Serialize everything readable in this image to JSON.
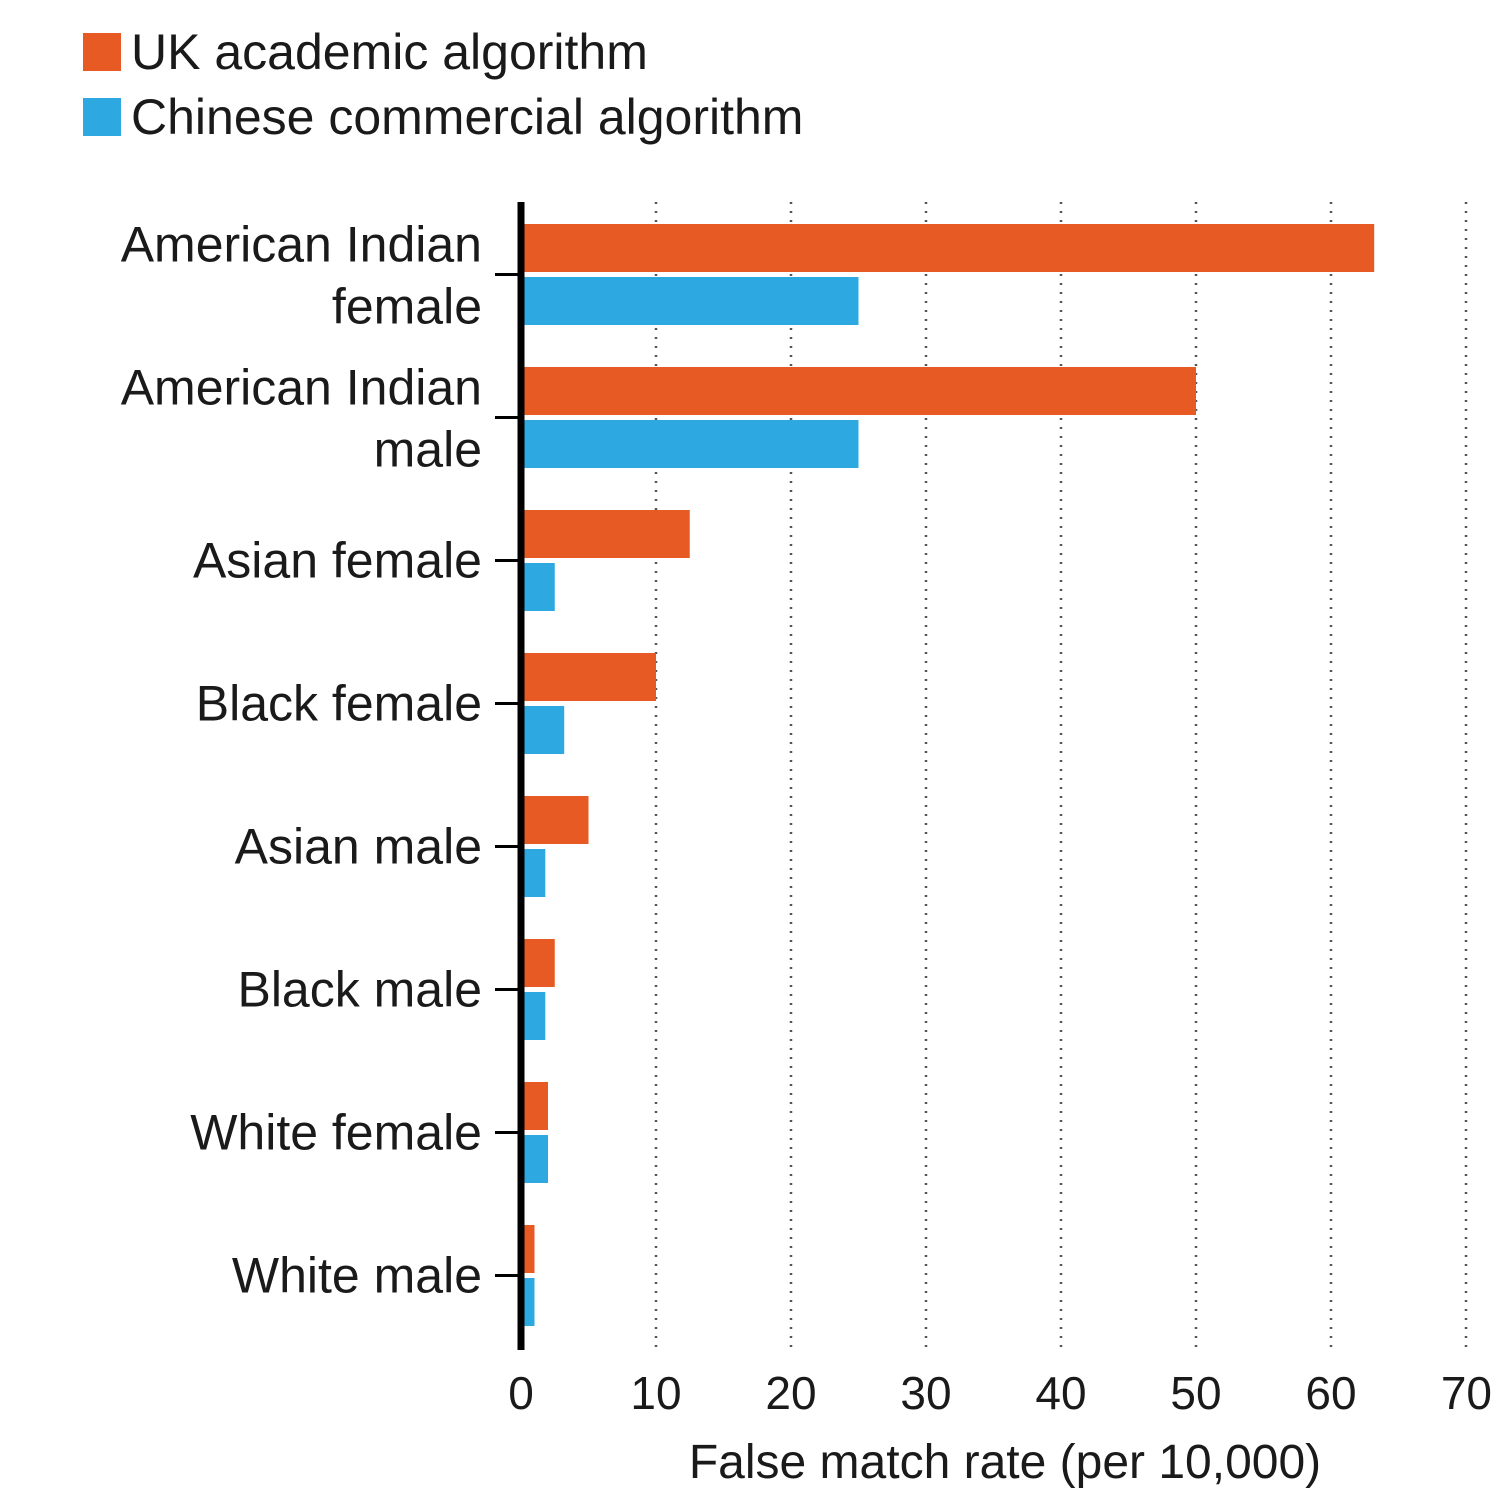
{
  "chart_data": {
    "type": "bar",
    "orientation": "horizontal",
    "categories": [
      [
        "American Indian",
        "female"
      ],
      [
        "American Indian",
        "male"
      ],
      [
        "Asian female"
      ],
      [
        "Black female"
      ],
      [
        "Asian male"
      ],
      [
        "Black male"
      ],
      [
        "White female"
      ],
      [
        "White male"
      ]
    ],
    "series": [
      {
        "name": "UK academic algorithm",
        "color": "#e85a24",
        "values": [
          63.2,
          50.0,
          12.5,
          10.0,
          5.0,
          2.5,
          2.0,
          1.0
        ]
      },
      {
        "name": "Chinese commercial algorithm",
        "color": "#2ea8e0",
        "values": [
          25.0,
          25.0,
          2.5,
          3.2,
          1.8,
          1.8,
          2.0,
          1.0
        ]
      }
    ],
    "xticks": [
      "0",
      "10",
      "20",
      "30",
      "40",
      "50",
      "60",
      "70"
    ],
    "xlim": [
      0,
      70
    ],
    "xlabel": "False match rate (per 10,000)",
    "grid": "vertical dotted",
    "legend_position": "top-left"
  }
}
